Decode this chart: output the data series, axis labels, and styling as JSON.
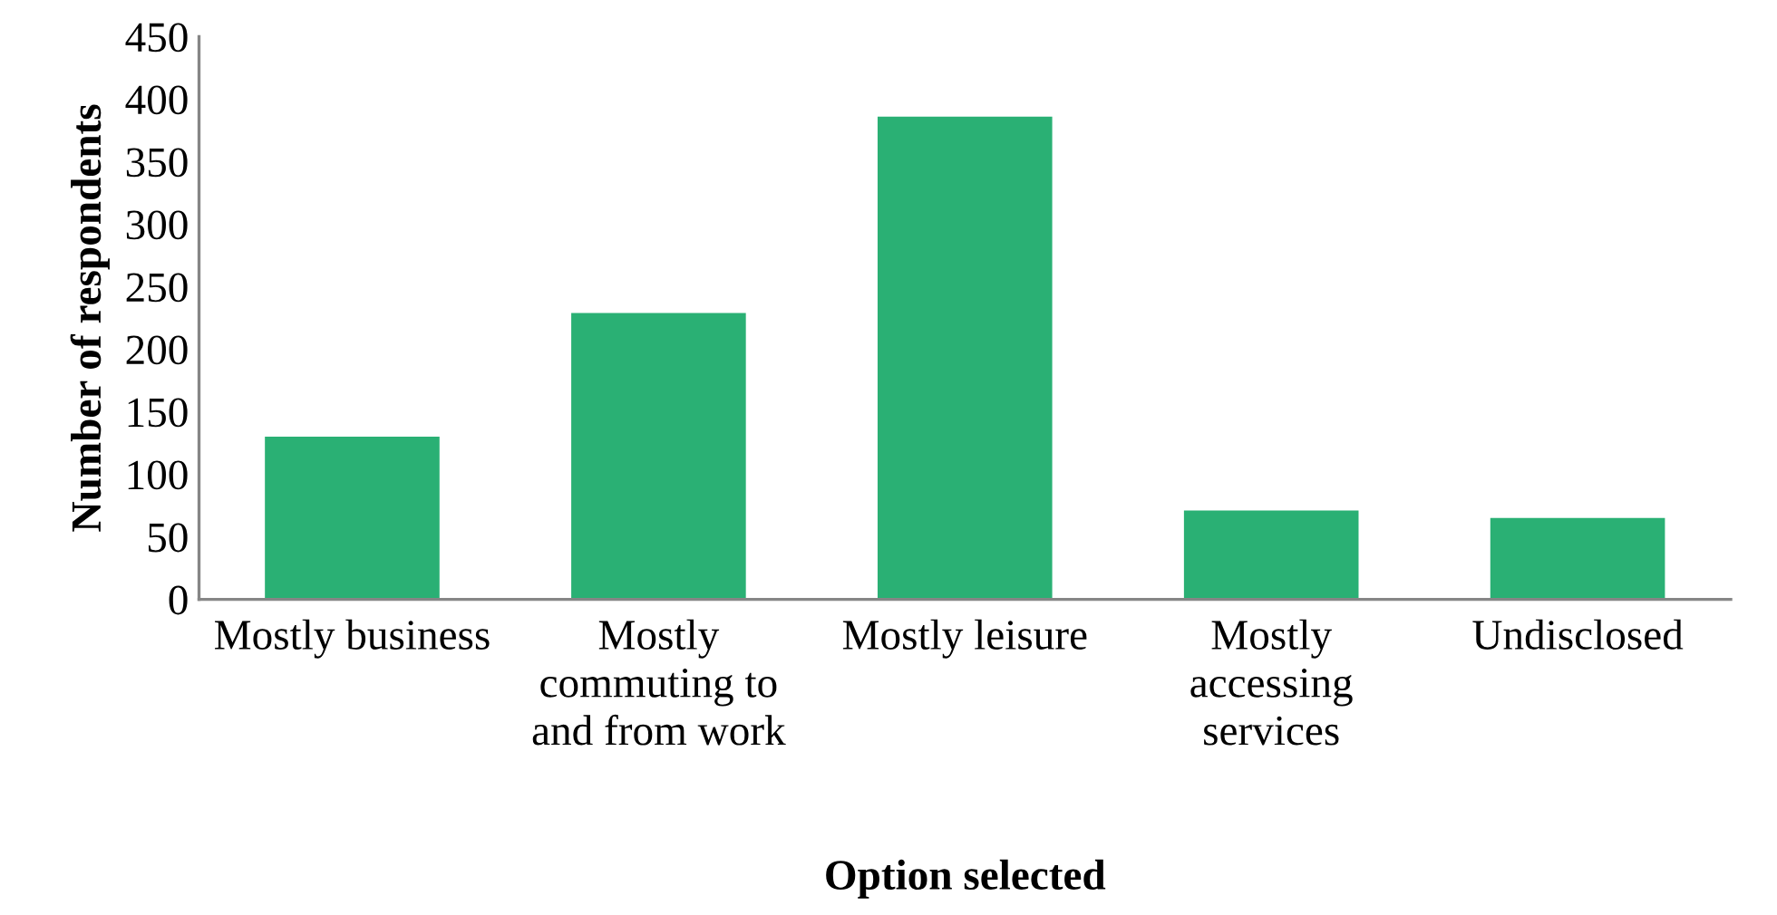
{
  "chart_data": {
    "type": "bar",
    "xlabel": "Option selected",
    "ylabel": "Number of respondents",
    "categories": [
      "Mostly business",
      "Mostly\ncommuting to\nand from work",
      "Mostly leisure",
      "Mostly\naccessing\nservices",
      "Undisclosed"
    ],
    "values": [
      130,
      229,
      386,
      71,
      65
    ],
    "color": "#2ab074",
    "ylim": [
      0,
      450
    ],
    "yticks": [
      0,
      50,
      100,
      150,
      200,
      250,
      300,
      350,
      400,
      450
    ],
    "grid": false,
    "legend": false
  }
}
